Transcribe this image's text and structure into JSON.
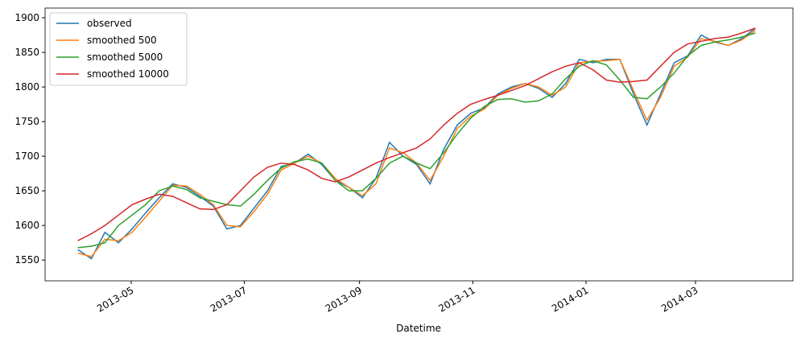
{
  "chart_data": {
    "type": "line",
    "x_label": "Datetime",
    "x": [
      2013.25,
      2013.27,
      2013.29,
      2013.31,
      2013.33,
      2013.35,
      2013.37,
      2013.39,
      2013.41,
      2013.43,
      2013.45,
      2013.47,
      2013.49,
      2013.51,
      2013.53,
      2013.55,
      2013.57,
      2013.59,
      2013.61,
      2013.63,
      2013.65,
      2013.67,
      2013.69,
      2013.71,
      2013.73,
      2013.75,
      2013.77,
      2013.79,
      2013.81,
      2013.83,
      2013.85,
      2013.87,
      2013.89,
      2013.91,
      2013.93,
      2013.95,
      2013.97,
      2013.99,
      2014.01,
      2014.03,
      2014.05,
      2014.07,
      2014.09,
      2014.11,
      2014.13,
      2014.15,
      2014.17,
      2014.19,
      2014.21,
      2014.23,
      2014.25
    ],
    "series": [
      {
        "name": "observed",
        "color": "#1f77b4",
        "values": [
          1565,
          1552,
          1590,
          1575,
          1595,
          1618,
          1640,
          1660,
          1655,
          1642,
          1628,
          1595,
          1600,
          1625,
          1650,
          1685,
          1690,
          1703,
          1688,
          1665,
          1655,
          1640,
          1668,
          1720,
          1700,
          1688,
          1660,
          1710,
          1745,
          1762,
          1770,
          1790,
          1800,
          1805,
          1798,
          1785,
          1805,
          1840,
          1835,
          1840,
          1840,
          1790,
          1745,
          1790,
          1835,
          1845,
          1875,
          1865,
          1860,
          1870,
          1885
        ]
      },
      {
        "name": "smoothed 500",
        "color": "#ff7f0e",
        "values": [
          1560,
          1555,
          1580,
          1578,
          1590,
          1612,
          1635,
          1658,
          1657,
          1645,
          1630,
          1600,
          1598,
          1620,
          1645,
          1680,
          1690,
          1700,
          1690,
          1668,
          1655,
          1643,
          1660,
          1712,
          1705,
          1690,
          1665,
          1700,
          1740,
          1758,
          1768,
          1788,
          1798,
          1805,
          1800,
          1788,
          1800,
          1835,
          1837,
          1838,
          1840,
          1795,
          1752,
          1785,
          1830,
          1843,
          1870,
          1866,
          1860,
          1868,
          1882
        ]
      },
      {
        "name": "smoothed 5000",
        "color": "#2ca02c",
        "values": [
          1568,
          1570,
          1575,
          1600,
          1615,
          1630,
          1650,
          1657,
          1652,
          1640,
          1635,
          1630,
          1628,
          1645,
          1665,
          1683,
          1692,
          1696,
          1690,
          1665,
          1650,
          1650,
          1668,
          1690,
          1700,
          1690,
          1682,
          1705,
          1732,
          1755,
          1772,
          1782,
          1783,
          1778,
          1780,
          1790,
          1812,
          1830,
          1838,
          1832,
          1810,
          1785,
          1783,
          1800,
          1820,
          1845,
          1860,
          1865,
          1868,
          1872,
          1878
        ]
      },
      {
        "name": "smoothed 10000",
        "color": "#d62728",
        "values": [
          1578,
          1588,
          1600,
          1615,
          1630,
          1638,
          1645,
          1642,
          1633,
          1624,
          1623,
          1630,
          1650,
          1670,
          1684,
          1690,
          1688,
          1680,
          1668,
          1663,
          1670,
          1680,
          1690,
          1698,
          1705,
          1712,
          1725,
          1745,
          1762,
          1775,
          1782,
          1788,
          1795,
          1802,
          1812,
          1822,
          1830,
          1835,
          1825,
          1810,
          1807,
          1808,
          1810,
          1830,
          1850,
          1862,
          1866,
          1870,
          1872,
          1878,
          1885
        ]
      }
    ],
    "xlim": [
      2013.2017,
      2014.3054
    ],
    "xticks": [
      {
        "value": 2013.3288,
        "label": "2013-05"
      },
      {
        "value": 2013.4959,
        "label": "2013-07"
      },
      {
        "value": 2013.6658,
        "label": "2013-09"
      },
      {
        "value": 2013.8329,
        "label": "2013-11"
      },
      {
        "value": 2014.0,
        "label": "2014-01"
      },
      {
        "value": 2014.1616,
        "label": "2014-03"
      }
    ],
    "ylim": [
      1520,
      1914
    ],
    "yticks": [
      1550,
      1600,
      1650,
      1700,
      1750,
      1800,
      1850,
      1900
    ],
    "legend": "upper left"
  }
}
